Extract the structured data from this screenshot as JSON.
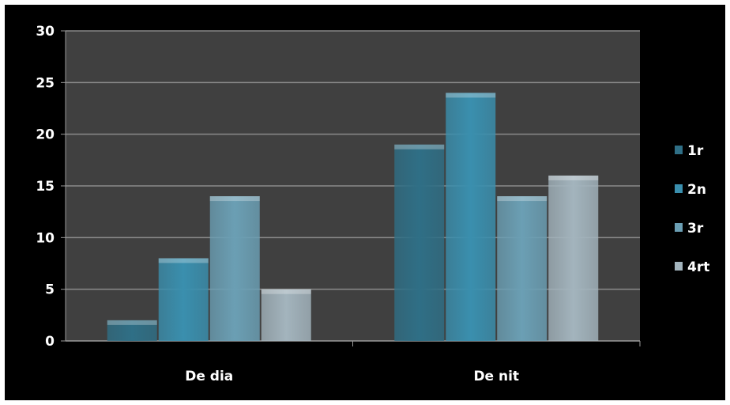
{
  "chart_data": {
    "type": "bar",
    "categories": [
      "De dia",
      "De nit"
    ],
    "series": [
      {
        "name": "1r",
        "values": [
          2,
          19
        ],
        "color": "#2f6f86"
      },
      {
        "name": "2n",
        "values": [
          8,
          24
        ],
        "color": "#3a8fae"
      },
      {
        "name": "3r",
        "values": [
          14,
          14
        ],
        "color": "#6b9fb4"
      },
      {
        "name": "4rt",
        "values": [
          5,
          16
        ],
        "color": "#a3b4bd"
      }
    ],
    "title": "",
    "xlabel": "",
    "ylabel": "",
    "ylim": [
      0,
      30
    ],
    "yticks": [
      0,
      5,
      10,
      15,
      20,
      25,
      30
    ],
    "grid": true,
    "legend": "right",
    "plot_background": "#404040",
    "background": "#000000"
  }
}
